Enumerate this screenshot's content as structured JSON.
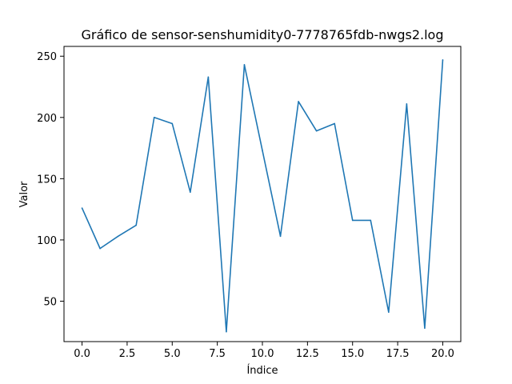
{
  "chart_data": {
    "type": "line",
    "title": "Gráfico de sensor-senshumidity0-7778765fdb-nwgs2.log",
    "xlabel": "Índice",
    "ylabel": "Valor",
    "xlim": [
      -1,
      21
    ],
    "ylim": [
      17,
      258
    ],
    "xticks": [
      0.0,
      2.5,
      5.0,
      7.5,
      10.0,
      12.5,
      15.0,
      17.5,
      20.0
    ],
    "xtick_labels": [
      "0.0",
      "2.5",
      "5.0",
      "7.5",
      "10.0",
      "12.5",
      "15.0",
      "17.5",
      "20.0"
    ],
    "yticks": [
      50,
      100,
      150,
      200,
      250
    ],
    "ytick_labels": [
      "50",
      "100",
      "150",
      "200",
      "250"
    ],
    "grid": false,
    "series": [
      {
        "color": "#1f77b4",
        "x": [
          0,
          1,
          2,
          3,
          4,
          5,
          6,
          7,
          8,
          9,
          10,
          11,
          12,
          13,
          14,
          15,
          16,
          17,
          18,
          19,
          20
        ],
        "y": [
          126,
          93,
          103,
          112,
          200,
          195,
          139,
          233,
          25,
          243,
          173,
          103,
          213,
          189,
          195,
          116,
          116,
          41,
          211,
          28,
          247
        ]
      }
    ]
  }
}
